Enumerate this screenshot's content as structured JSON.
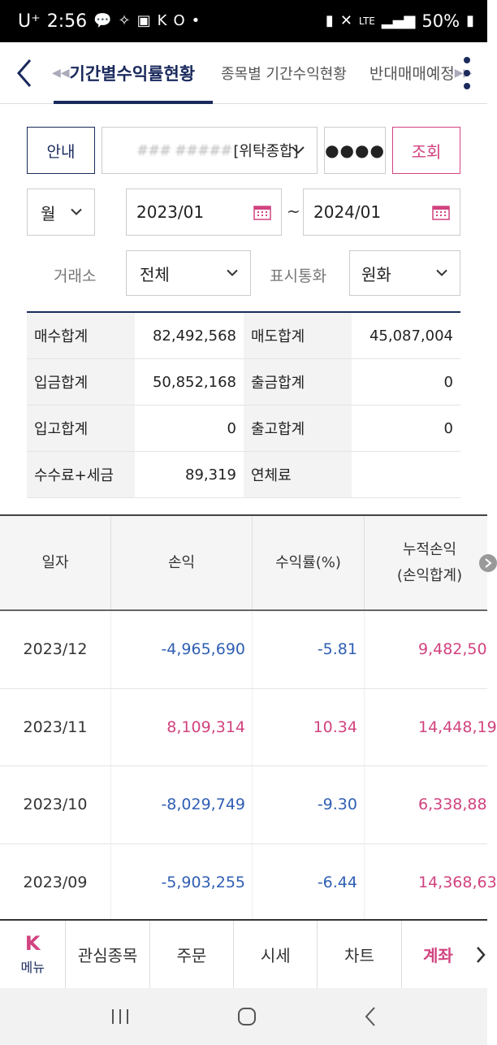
{
  "status_bar": {
    "carrier": "U⁺",
    "time": "2:56",
    "battery": "50%"
  },
  "tabs": [
    {
      "label": "기간별수익률현황"
    },
    {
      "label": "종목별 기간수익현황"
    },
    {
      "label": "반대매매예정"
    }
  ],
  "controls": {
    "guide_label": "안내",
    "account_masked": "### #####",
    "account_type": "[위탁종합]",
    "password_mask": "●●●●",
    "search_label": "조회",
    "period": "월",
    "date_from": "2023/01",
    "date_sep": "~",
    "date_to": "2024/01",
    "market_label": "거래소",
    "market_value": "전체",
    "currency_label": "표시통화",
    "currency_value": "원화"
  },
  "summary": [
    [
      {
        "k": "매수합계",
        "v": "82,492,568"
      },
      {
        "k": "매도합계",
        "v": "45,087,004"
      }
    ],
    [
      {
        "k": "입금합계",
        "v": "50,852,168"
      },
      {
        "k": "출금합계",
        "v": "0"
      }
    ],
    [
      {
        "k": "입고합계",
        "v": "0"
      },
      {
        "k": "출고합계",
        "v": "0"
      }
    ],
    [
      {
        "k": "수수료+세금",
        "v": "89,319"
      },
      {
        "k": "연체료",
        "v": ""
      }
    ]
  ],
  "table": {
    "headers": [
      "일자",
      "손익",
      "수익률(%)",
      "누적손익",
      "(손익합계)"
    ],
    "rows": [
      {
        "date": "2023/12",
        "pnl": "-4,965,690",
        "rate": "-5.81",
        "cum": "9,482,50"
      },
      {
        "date": "2023/11",
        "pnl": "8,109,314",
        "rate": "10.34",
        "cum": "14,448,19"
      },
      {
        "date": "2023/10",
        "pnl": "-8,029,749",
        "rate": "-9.30",
        "cum": "6,338,88"
      },
      {
        "date": "2023/09",
        "pnl": "-5,903,255",
        "rate": "-6.44",
        "cum": "14,368,63"
      }
    ]
  },
  "bottom_nav": {
    "menu_logo": "K",
    "menu_label": "메뉴",
    "items": [
      "관심종목",
      "주문",
      "시세",
      "차트",
      "계좌"
    ]
  },
  "colors": {
    "navy": "#1a2a5c",
    "pink": "#d1437f",
    "blue": "#2f5fb3"
  }
}
